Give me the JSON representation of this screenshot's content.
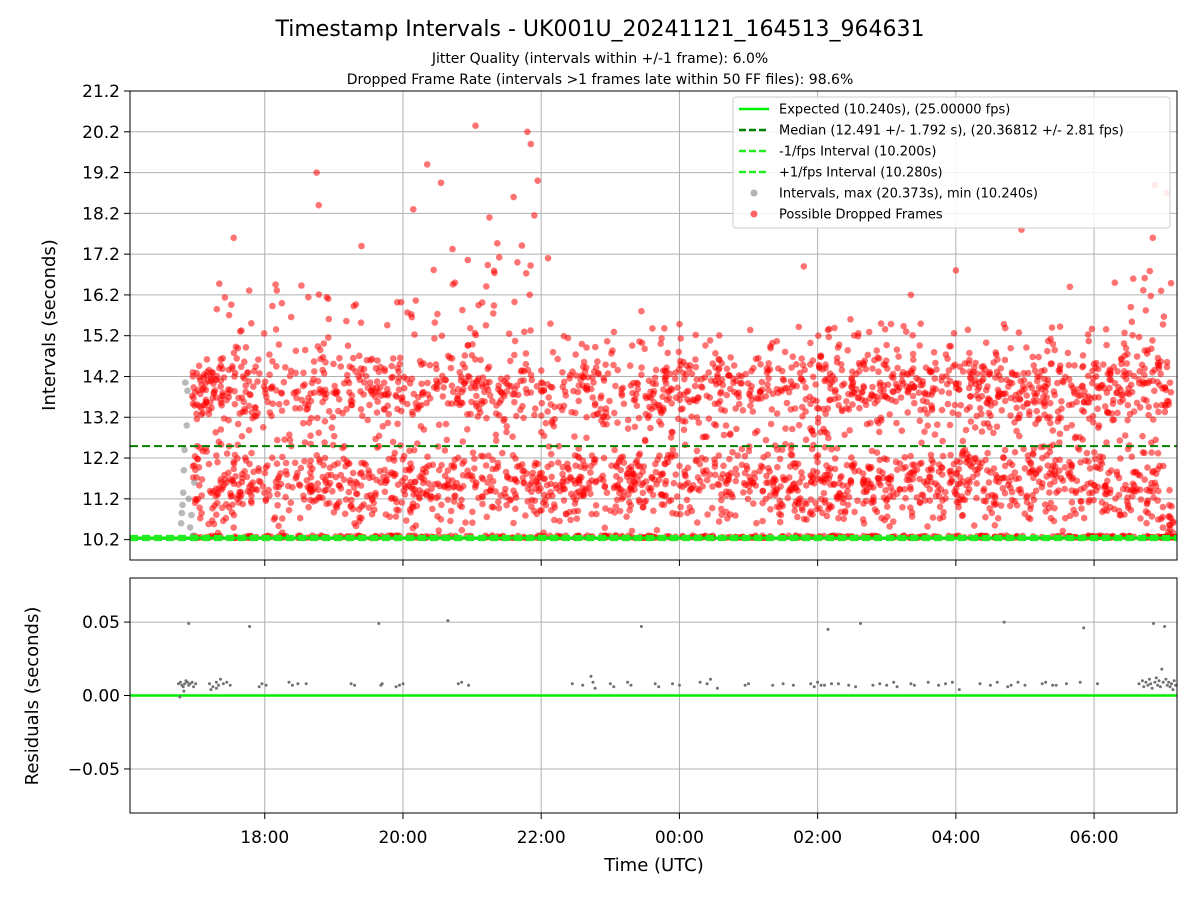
{
  "chart_data": [
    {
      "type": "scatter",
      "title": "Timestamp Intervals - UK001U_20241121_164513_964631",
      "subtitle_lines": [
        "Jitter Quality (intervals within +/-1 frame): 6.0%",
        "Dropped Frame Rate (intervals >1 frames late within 50 FF files): 98.6%"
      ],
      "ylabel": "Intervals (seconds)",
      "ylim": [
        9.7,
        21.2
      ],
      "yticks": [
        10.2,
        11.2,
        12.2,
        13.2,
        14.2,
        15.2,
        16.2,
        17.2,
        18.2,
        19.2,
        20.2,
        21.2
      ],
      "ytick_labels": [
        "10.2",
        "11.2",
        "12.2",
        "13.2",
        "14.2",
        "15.2",
        "16.2",
        "17.2",
        "18.2",
        "19.2",
        "20.2",
        "21.2"
      ],
      "xlim_hours": [
        16.05,
        31.2
      ],
      "grid": true,
      "legend_position": "top-right",
      "reference_lines": [
        {
          "name": "Expected (10.240s), (25.00000 fps)",
          "y": 10.24,
          "style": "solid",
          "color": "#00ee00"
        },
        {
          "name": "Median (12.491 +/- 1.792 s), (20.36812 +/- 2.81 fps)",
          "y": 12.491,
          "style": "dashed",
          "color": "#008000"
        },
        {
          "name": "-1/fps Interval (10.200s)",
          "y": 10.2,
          "style": "dashed",
          "color": "#22ee22"
        },
        {
          "name": "+1/fps Interval (10.280s)",
          "y": 10.28,
          "style": "dashed",
          "color": "#22ee22"
        }
      ],
      "series": [
        {
          "name": "Intervals, max (20.373s), min (10.240s)",
          "color": "#808080",
          "points": [
            [
              16.78,
              10.24
            ],
            [
              16.79,
              10.6
            ],
            [
              16.8,
              10.85
            ],
            [
              16.81,
              11.05
            ],
            [
              16.82,
              11.35
            ],
            [
              16.83,
              11.9
            ],
            [
              16.84,
              12.4
            ],
            [
              16.85,
              14.05
            ],
            [
              16.87,
              13.0
            ],
            [
              16.88,
              13.85
            ],
            [
              16.9,
              11.2
            ],
            [
              16.92,
              10.5
            ],
            [
              16.94,
              10.8
            ],
            [
              16.96,
              10.3
            ],
            [
              16.98,
              11.6
            ],
            [
              17.0,
              10.24
            ]
          ]
        },
        {
          "name": "Possible Dropped Frames",
          "color": "#ff0000",
          "generated": true,
          "hour_start": 16.95,
          "hour_end": 31.15,
          "count": 3400,
          "median": 12.491,
          "max": 20.373,
          "notable_peaks": [
            [
              17.55,
              17.6
            ],
            [
              18.75,
              19.2
            ],
            [
              18.78,
              18.4
            ],
            [
              19.4,
              17.4
            ],
            [
              20.15,
              18.3
            ],
            [
              20.35,
              19.4
            ],
            [
              20.55,
              18.95
            ],
            [
              21.05,
              20.35
            ],
            [
              21.25,
              18.1
            ],
            [
              21.6,
              18.6
            ],
            [
              21.8,
              20.2
            ],
            [
              21.85,
              19.9
            ],
            [
              21.95,
              19.0
            ],
            [
              21.9,
              18.15
            ],
            [
              22.1,
              17.1
            ],
            [
              23.45,
              15.8
            ],
            [
              25.8,
              16.9
            ],
            [
              27.35,
              16.2
            ],
            [
              28.0,
              16.8
            ],
            [
              28.95,
              17.8
            ],
            [
              29.65,
              16.4
            ],
            [
              30.3,
              16.5
            ],
            [
              30.85,
              17.6
            ],
            [
              30.88,
              18.9
            ],
            [
              31.05,
              18.7
            ],
            [
              30.97,
              16.3
            ]
          ]
        }
      ]
    },
    {
      "type": "scatter",
      "ylabel": "Residuals (seconds)",
      "xlabel": "Time (UTC)",
      "ylim": [
        -0.08,
        0.08
      ],
      "yticks": [
        -0.05,
        0.0,
        0.05
      ],
      "ytick_labels": [
        "−0.05",
        "0.00",
        "0.05"
      ],
      "xlim_hours": [
        16.05,
        31.2
      ],
      "xticks_hours": [
        18,
        20,
        22,
        24,
        26,
        28,
        30
      ],
      "xtick_labels": [
        "18:00",
        "20:00",
        "22:00",
        "00:00",
        "02:00",
        "04:00",
        "06:00"
      ],
      "grid": true,
      "zero_line": {
        "y": 0.0,
        "color": "#00ee00"
      },
      "series": [
        {
          "name": "residuals",
          "color": "#707070",
          "points": [
            [
              16.75,
              0.008
            ],
            [
              16.78,
              0.009
            ],
            [
              16.8,
              0.007
            ],
            [
              16.82,
              0.006
            ],
            [
              16.84,
              0.008
            ],
            [
              16.86,
              0.01
            ],
            [
              16.88,
              0.009
            ],
            [
              16.9,
              0.007
            ],
            [
              16.92,
              0.008
            ],
            [
              16.95,
              0.009
            ],
            [
              16.97,
              0.006
            ],
            [
              17.0,
              0.008
            ],
            [
              16.77,
              -0.001
            ],
            [
              16.83,
              0.003
            ],
            [
              16.9,
              0.049
            ],
            [
              17.2,
              0.008
            ],
            [
              17.25,
              0.006
            ],
            [
              17.3,
              0.009
            ],
            [
              17.33,
              0.007
            ],
            [
              17.36,
              0.011
            ],
            [
              17.4,
              0.008
            ],
            [
              17.45,
              0.009
            ],
            [
              17.5,
              0.007
            ],
            [
              17.22,
              0.004
            ],
            [
              17.3,
              0.005
            ],
            [
              17.78,
              0.047
            ],
            [
              17.92,
              0.006
            ],
            [
              17.96,
              0.008
            ],
            [
              18.02,
              0.007
            ],
            [
              18.35,
              0.009
            ],
            [
              18.4,
              0.007
            ],
            [
              18.48,
              0.008
            ],
            [
              18.6,
              0.008
            ],
            [
              19.25,
              0.008
            ],
            [
              19.3,
              0.007
            ],
            [
              19.65,
              0.049
            ],
            [
              19.68,
              0.007
            ],
            [
              19.7,
              0.008
            ],
            [
              19.9,
              0.006
            ],
            [
              19.95,
              0.007
            ],
            [
              20.0,
              0.008
            ],
            [
              20.65,
              0.051
            ],
            [
              20.8,
              0.008
            ],
            [
              20.85,
              0.009
            ],
            [
              20.95,
              0.007
            ],
            [
              22.45,
              0.008
            ],
            [
              22.6,
              0.007
            ],
            [
              22.72,
              0.013
            ],
            [
              22.75,
              0.009
            ],
            [
              22.78,
              0.005
            ],
            [
              23.0,
              0.008
            ],
            [
              23.05,
              0.006
            ],
            [
              23.25,
              0.009
            ],
            [
              23.3,
              0.007
            ],
            [
              23.45,
              0.047
            ],
            [
              23.65,
              0.008
            ],
            [
              23.7,
              0.006
            ],
            [
              23.9,
              0.008
            ],
            [
              24.0,
              0.007
            ],
            [
              24.3,
              0.009
            ],
            [
              24.4,
              0.008
            ],
            [
              24.45,
              0.011
            ],
            [
              24.55,
              0.005
            ],
            [
              24.95,
              0.007
            ],
            [
              25.0,
              0.008
            ],
            [
              25.35,
              0.007
            ],
            [
              25.5,
              0.008
            ],
            [
              25.65,
              0.007
            ],
            [
              25.9,
              0.008
            ],
            [
              25.95,
              0.006
            ],
            [
              26.0,
              0.009
            ],
            [
              26.05,
              0.007
            ],
            [
              26.1,
              0.007
            ],
            [
              26.15,
              0.045
            ],
            [
              26.2,
              0.008
            ],
            [
              26.3,
              0.008
            ],
            [
              26.45,
              0.007
            ],
            [
              26.55,
              0.006
            ],
            [
              26.62,
              0.049
            ],
            [
              26.8,
              0.007
            ],
            [
              26.9,
              0.008
            ],
            [
              27.0,
              0.007
            ],
            [
              27.1,
              0.009
            ],
            [
              27.15,
              0.006
            ],
            [
              27.35,
              0.008
            ],
            [
              27.4,
              0.007
            ],
            [
              27.6,
              0.009
            ],
            [
              27.75,
              0.007
            ],
            [
              27.85,
              0.008
            ],
            [
              27.95,
              0.009
            ],
            [
              28.05,
              0.004
            ],
            [
              28.35,
              0.008
            ],
            [
              28.5,
              0.007
            ],
            [
              28.6,
              0.009
            ],
            [
              28.7,
              0.05
            ],
            [
              28.75,
              0.006
            ],
            [
              28.8,
              0.007
            ],
            [
              28.9,
              0.009
            ],
            [
              29.0,
              0.007
            ],
            [
              29.25,
              0.008
            ],
            [
              29.3,
              0.009
            ],
            [
              29.4,
              0.007
            ],
            [
              29.45,
              0.007
            ],
            [
              29.6,
              0.008
            ],
            [
              29.8,
              0.009
            ],
            [
              29.85,
              0.046
            ],
            [
              30.05,
              0.008
            ],
            [
              30.65,
              0.008
            ],
            [
              30.7,
              0.01
            ],
            [
              30.72,
              0.006
            ],
            [
              30.75,
              0.009
            ],
            [
              30.78,
              0.007
            ],
            [
              30.8,
              0.011
            ],
            [
              30.82,
              0.008
            ],
            [
              30.84,
              0.005
            ],
            [
              30.86,
              0.049
            ],
            [
              30.88,
              0.009
            ],
            [
              30.9,
              0.012
            ],
            [
              30.92,
              0.007
            ],
            [
              30.94,
              0.01
            ],
            [
              30.96,
              0.006
            ],
            [
              30.98,
              0.018
            ],
            [
              31.0,
              0.009
            ],
            [
              31.02,
              0.047
            ],
            [
              31.04,
              0.011
            ],
            [
              31.06,
              0.007
            ],
            [
              31.08,
              0.009
            ],
            [
              31.1,
              0.006
            ],
            [
              31.12,
              0.008
            ],
            [
              31.14,
              0.004
            ],
            [
              31.16,
              0.01
            ],
            [
              31.18,
              0.007
            ]
          ]
        }
      ]
    }
  ]
}
